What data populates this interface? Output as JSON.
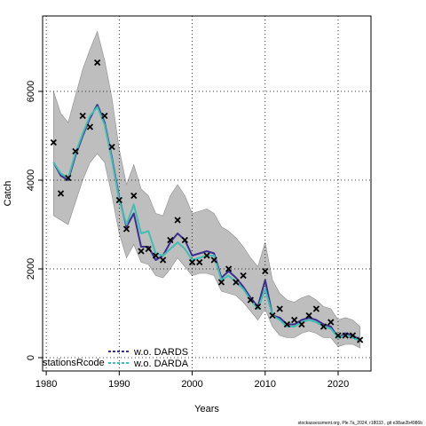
{
  "chart_data": {
    "type": "line",
    "xlabel": "Years",
    "ylabel": "Catch",
    "xlim": [
      1979.5,
      2024.5
    ],
    "ylim": [
      -300,
      7700
    ],
    "x_ticks": [
      1980,
      1990,
      2000,
      2010,
      2020
    ],
    "y_ticks": [
      0,
      2000,
      4000,
      6000
    ],
    "grid": "dotted",
    "legend_position": "bottom-left",
    "legend_title": "stationsRcode",
    "colors": {
      "band": "#bebebe",
      "band_edge": "#8c8c8c",
      "series_darker": "#3b2f8f",
      "series_lighter": "#3fbfb4",
      "points": "#000000"
    },
    "confidence_band": {
      "years": [
        1981,
        1982,
        1983,
        1984,
        1985,
        1986,
        1987,
        1988,
        1989,
        1990,
        1991,
        1992,
        1993,
        1994,
        1995,
        1996,
        1997,
        1998,
        1999,
        2000,
        2001,
        2002,
        2003,
        2004,
        2005,
        2006,
        2007,
        2008,
        2009,
        2010,
        2011,
        2012,
        2013,
        2014,
        2015,
        2016,
        2017,
        2018,
        2019,
        2020,
        2021,
        2022,
        2023
      ],
      "upper": [
        6000,
        5500,
        5300,
        5900,
        6500,
        6950,
        7350,
        6700,
        5850,
        4700,
        3900,
        4350,
        3800,
        3650,
        3250,
        3200,
        3650,
        3900,
        3650,
        3250,
        3300,
        3350,
        3250,
        2950,
        2850,
        2700,
        2500,
        2250,
        2050,
        2600,
        1750,
        1450,
        1300,
        1250,
        1350,
        1400,
        1300,
        1150,
        1100,
        850,
        900,
        850,
        700
      ],
      "lower": [
        3200,
        3100,
        3000,
        3500,
        4000,
        4400,
        4600,
        4400,
        3650,
        2800,
        2250,
        2550,
        2150,
        2100,
        1850,
        1800,
        2000,
        2250,
        2050,
        1850,
        1900,
        1900,
        1850,
        1500,
        1450,
        1400,
        1250,
        1050,
        850,
        1100,
        700,
        500,
        450,
        450,
        550,
        600,
        550,
        450,
        450,
        250,
        300,
        300,
        220
      ]
    },
    "series": [
      {
        "name": "w.o. DARDS",
        "x": [
          1981,
          1982,
          1983,
          1984,
          1985,
          1986,
          1987,
          1988,
          1989,
          1990,
          1991,
          1992,
          1993,
          1994,
          1995,
          1996,
          1997,
          1998,
          1999,
          2000,
          2001,
          2002,
          2003,
          2004,
          2005,
          2006,
          2007,
          2008,
          2009,
          2010,
          2011,
          2012,
          2013,
          2014,
          2015,
          2016,
          2017,
          2018,
          2019,
          2020,
          2021,
          2022,
          2023
        ],
        "y": [
          4400,
          4100,
          4000,
          4550,
          5000,
          5400,
          5700,
          5300,
          4500,
          3600,
          2950,
          3250,
          2500,
          2500,
          2200,
          2300,
          2600,
          2800,
          2650,
          2300,
          2350,
          2400,
          2350,
          1800,
          1950,
          1800,
          1600,
          1350,
          1150,
          1750,
          950,
          900,
          750,
          750,
          850,
          900,
          850,
          750,
          700,
          450,
          550,
          500,
          400
        ]
      },
      {
        "name": "w.o. DARDA",
        "x": [
          1981,
          1982,
          1983,
          1984,
          1985,
          1986,
          1987,
          1988,
          1989,
          1990,
          1991,
          1992,
          1993,
          1994,
          1995,
          1996,
          1997,
          1998,
          1999,
          2000,
          2001,
          2002,
          2003,
          2004,
          2005,
          2006,
          2007,
          2008,
          2009,
          2010,
          2011,
          2012,
          2013,
          2014,
          2015,
          2016,
          2017,
          2018,
          2019,
          2020,
          2021,
          2022,
          2023
        ],
        "y": [
          4400,
          4150,
          4050,
          4600,
          5050,
          5450,
          5650,
          5250,
          4450,
          3550,
          3000,
          3450,
          2800,
          2850,
          2350,
          2300,
          2450,
          2600,
          2450,
          2200,
          2250,
          2300,
          2300,
          1750,
          1850,
          1700,
          1550,
          1300,
          1100,
          1550,
          950,
          850,
          700,
          700,
          800,
          850,
          800,
          700,
          650,
          450,
          500,
          450,
          370
        ]
      }
    ],
    "observations": {
      "x": [
        1981,
        1982,
        1983,
        1984,
        1985,
        1986,
        1987,
        1988,
        1989,
        1990,
        1991,
        1992,
        1993,
        1994,
        1995,
        1996,
        1997,
        1998,
        1999,
        2000,
        2001,
        2002,
        2003,
        2004,
        2005,
        2006,
        2007,
        2008,
        2009,
        2010,
        2011,
        2012,
        2013,
        2014,
        2015,
        2016,
        2017,
        2018,
        2019,
        2020,
        2021,
        2022,
        2023
      ],
      "y": [
        4850,
        3700,
        4050,
        4650,
        5450,
        5200,
        6650,
        5450,
        4750,
        3550,
        2900,
        3650,
        2400,
        2450,
        2300,
        2200,
        2650,
        3100,
        2650,
        2150,
        2150,
        2300,
        2200,
        1700,
        2000,
        1700,
        1850,
        1300,
        1150,
        1950,
        950,
        1100,
        750,
        850,
        750,
        950,
        1100,
        700,
        800,
        500,
        500,
        500,
        400
      ]
    },
    "footer": "stockassessment.org, Ple.7a_2024, r18033 , git e38ae2b4986b"
  }
}
